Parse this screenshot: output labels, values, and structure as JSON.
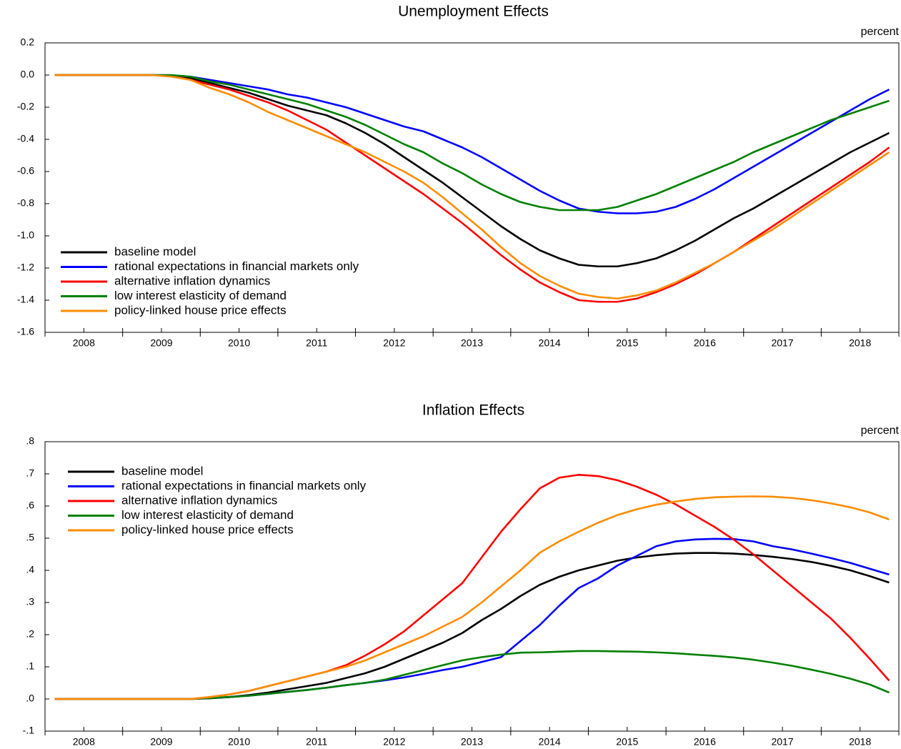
{
  "chart_data": [
    {
      "type": "line",
      "title": "Unemployment Effects",
      "unit_label": "percent",
      "legend": "lower left",
      "grid": false,
      "categories": [
        "2008",
        null,
        null,
        null,
        "2009",
        null,
        null,
        null,
        "2010",
        null,
        null,
        null,
        "2011",
        null,
        null,
        null,
        "2012",
        null,
        null,
        null,
        "2013",
        null,
        null,
        null,
        "2014",
        null,
        null,
        null,
        "2015",
        null,
        null,
        null,
        "2016",
        null,
        null,
        null,
        "2017",
        null,
        null,
        null,
        "2018",
        null,
        null,
        null
      ],
      "ylim": [
        -1.6,
        0.2
      ],
      "yticks": [
        0.2,
        {
          "value": 0,
          "label": "0.0"
        },
        -0.2,
        -0.4,
        -0.6,
        -0.8,
        {
          "value": -1,
          "label": "-1.0"
        },
        -1.2,
        -1.4,
        -1.6
      ],
      "series": [
        {
          "name": "baseline model",
          "color": "#000000",
          "values": [
            0,
            0,
            0,
            0,
            0,
            0,
            -0.005,
            -0.02,
            -0.05,
            -0.08,
            -0.11,
            -0.15,
            -0.19,
            -0.22,
            -0.25,
            -0.3,
            -0.36,
            -0.43,
            -0.51,
            -0.59,
            -0.67,
            -0.76,
            -0.85,
            -0.94,
            -1.02,
            -1.09,
            -1.14,
            -1.18,
            -1.19,
            -1.19,
            -1.17,
            -1.14,
            -1.09,
            -1.03,
            -0.96,
            -0.89,
            -0.83,
            -0.76,
            -0.69,
            -0.62,
            -0.55,
            -0.48,
            -0.42,
            -0.36
          ]
        },
        {
          "name": "rational expectations in financial markets only",
          "color": "#0000ff",
          "values": [
            0,
            0,
            0,
            0,
            0,
            0,
            -0.002,
            -0.01,
            -0.03,
            -0.05,
            -0.07,
            -0.09,
            -0.12,
            -0.14,
            -0.17,
            -0.2,
            -0.24,
            -0.28,
            -0.32,
            -0.35,
            -0.4,
            -0.45,
            -0.51,
            -0.58,
            -0.65,
            -0.72,
            -0.78,
            -0.83,
            -0.85,
            -0.86,
            -0.86,
            -0.85,
            -0.82,
            -0.77,
            -0.71,
            -0.64,
            -0.57,
            -0.5,
            -0.43,
            -0.36,
            -0.29,
            -0.22,
            -0.15,
            -0.09
          ]
        },
        {
          "name": "alternative inflation dynamics",
          "color": "#ff0000",
          "values": [
            0,
            0,
            0,
            0,
            0,
            0,
            -0.005,
            -0.03,
            -0.06,
            -0.09,
            -0.13,
            -0.17,
            -0.22,
            -0.28,
            -0.34,
            -0.42,
            -0.5,
            -0.58,
            -0.66,
            -0.74,
            -0.83,
            -0.92,
            -1.02,
            -1.12,
            -1.21,
            -1.29,
            -1.35,
            -1.4,
            -1.41,
            -1.41,
            -1.39,
            -1.35,
            -1.3,
            -1.24,
            -1.17,
            -1.1,
            -1.02,
            -0.94,
            -0.86,
            -0.78,
            -0.7,
            -0.62,
            -0.54,
            -0.45
          ]
        },
        {
          "name": "low interest elasticity of demand",
          "color": "#008000",
          "values": [
            0,
            0,
            0,
            0,
            0,
            0,
            0,
            -0.01,
            -0.04,
            -0.06,
            -0.09,
            -0.12,
            -0.15,
            -0.18,
            -0.22,
            -0.26,
            -0.31,
            -0.37,
            -0.43,
            -0.48,
            -0.55,
            -0.61,
            -0.68,
            -0.74,
            -0.79,
            -0.82,
            -0.84,
            -0.84,
            -0.84,
            -0.82,
            -0.78,
            -0.74,
            -0.69,
            -0.64,
            -0.59,
            -0.54,
            -0.48,
            -0.43,
            -0.38,
            -0.33,
            -0.28,
            -0.24,
            -0.2,
            -0.16
          ]
        },
        {
          "name": "policy-linked house price effects",
          "color": "#ff8c00",
          "values": [
            0,
            0,
            0,
            0,
            0,
            0,
            -0.01,
            -0.03,
            -0.08,
            -0.12,
            -0.17,
            -0.23,
            -0.28,
            -0.33,
            -0.38,
            -0.43,
            -0.48,
            -0.54,
            -0.6,
            -0.67,
            -0.76,
            -0.86,
            -0.96,
            -1.07,
            -1.17,
            -1.25,
            -1.31,
            -1.36,
            -1.38,
            -1.39,
            -1.37,
            -1.34,
            -1.29,
            -1.23,
            -1.17,
            -1.1,
            -1.03,
            -0.96,
            -0.88,
            -0.8,
            -0.72,
            -0.64,
            -0.56,
            -0.48
          ]
        }
      ]
    },
    {
      "type": "line",
      "title": "Inflation Effects",
      "unit_label": "percent",
      "legend": "upper left",
      "grid": false,
      "categories": [
        "2008",
        null,
        null,
        null,
        "2009",
        null,
        null,
        null,
        "2010",
        null,
        null,
        null,
        "2011",
        null,
        null,
        null,
        "2012",
        null,
        null,
        null,
        "2013",
        null,
        null,
        null,
        "2014",
        null,
        null,
        null,
        "2015",
        null,
        null,
        null,
        "2016",
        null,
        null,
        null,
        "2017",
        null,
        null,
        null,
        "2018",
        null,
        null,
        null
      ],
      "ylim": [
        -0.1,
        0.8
      ],
      "yticks": [
        {
          "value": 0.8,
          "label": ".8"
        },
        {
          "value": 0.7,
          "label": ".7"
        },
        {
          "value": 0.6,
          "label": ".6"
        },
        {
          "value": 0.5,
          "label": ".5"
        },
        {
          "value": 0.4,
          "label": ".4"
        },
        {
          "value": 0.3,
          "label": ".3"
        },
        {
          "value": 0.2,
          "label": ".2"
        },
        {
          "value": 0.1,
          "label": ".1"
        },
        {
          "value": 0,
          "label": ".0"
        },
        {
          "value": -0.1,
          "label": "-.1"
        }
      ],
      "series": [
        {
          "name": "baseline model",
          "color": "#000000",
          "values": [
            0,
            0,
            0,
            0,
            0,
            0,
            0,
            0,
            0.002,
            0.006,
            0.012,
            0.02,
            0.03,
            0.04,
            0.05,
            0.065,
            0.08,
            0.1,
            0.125,
            0.15,
            0.175,
            0.205,
            0.245,
            0.28,
            0.32,
            0.355,
            0.38,
            0.4,
            0.415,
            0.43,
            0.44,
            0.447,
            0.452,
            0.454,
            0.454,
            0.452,
            0.448,
            0.442,
            0.435,
            0.426,
            0.414,
            0.4,
            0.382,
            0.362
          ]
        },
        {
          "name": "rational expectations in financial markets only",
          "color": "#0000ff",
          "values": [
            0,
            0,
            0,
            0,
            0,
            0,
            0,
            0,
            0.003,
            0.006,
            0.01,
            0.016,
            0.022,
            0.028,
            0.035,
            0.043,
            0.05,
            0.058,
            0.067,
            0.078,
            0.09,
            0.1,
            0.115,
            0.13,
            0.18,
            0.23,
            0.29,
            0.345,
            0.375,
            0.415,
            0.445,
            0.475,
            0.49,
            0.496,
            0.498,
            0.497,
            0.49,
            0.475,
            0.465,
            0.452,
            0.438,
            0.423,
            0.405,
            0.387
          ]
        },
        {
          "name": "alternative inflation dynamics",
          "color": "#ff0000",
          "values": [
            0,
            0,
            0,
            0,
            0,
            0,
            0,
            0,
            0.006,
            0.014,
            0.025,
            0.04,
            0.055,
            0.07,
            0.085,
            0.105,
            0.135,
            0.17,
            0.21,
            0.26,
            0.31,
            0.36,
            0.44,
            0.52,
            0.59,
            0.655,
            0.688,
            0.697,
            0.693,
            0.68,
            0.66,
            0.635,
            0.605,
            0.57,
            0.535,
            0.495,
            0.45,
            0.4,
            0.35,
            0.3,
            0.25,
            0.19,
            0.125,
            0.057
          ]
        },
        {
          "name": "low interest elasticity of demand",
          "color": "#008000",
          "values": [
            0,
            0,
            0,
            0,
            0,
            0,
            0,
            0,
            0.003,
            0.006,
            0.01,
            0.016,
            0.022,
            0.028,
            0.035,
            0.043,
            0.05,
            0.06,
            0.075,
            0.09,
            0.105,
            0.12,
            0.13,
            0.138,
            0.144,
            0.145,
            0.147,
            0.149,
            0.149,
            0.148,
            0.147,
            0.145,
            0.142,
            0.138,
            0.134,
            0.129,
            0.122,
            0.113,
            0.103,
            0.091,
            0.078,
            0.063,
            0.045,
            0.02
          ]
        },
        {
          "name": "policy-linked house price effects",
          "color": "#ff8c00",
          "values": [
            0,
            0,
            0,
            0,
            0,
            0,
            0,
            0,
            0.006,
            0.014,
            0.025,
            0.04,
            0.055,
            0.07,
            0.085,
            0.1,
            0.12,
            0.145,
            0.17,
            0.195,
            0.225,
            0.255,
            0.3,
            0.35,
            0.4,
            0.455,
            0.49,
            0.52,
            0.548,
            0.572,
            0.59,
            0.604,
            0.614,
            0.622,
            0.627,
            0.629,
            0.63,
            0.629,
            0.625,
            0.618,
            0.608,
            0.596,
            0.58,
            0.558
          ]
        }
      ]
    }
  ]
}
